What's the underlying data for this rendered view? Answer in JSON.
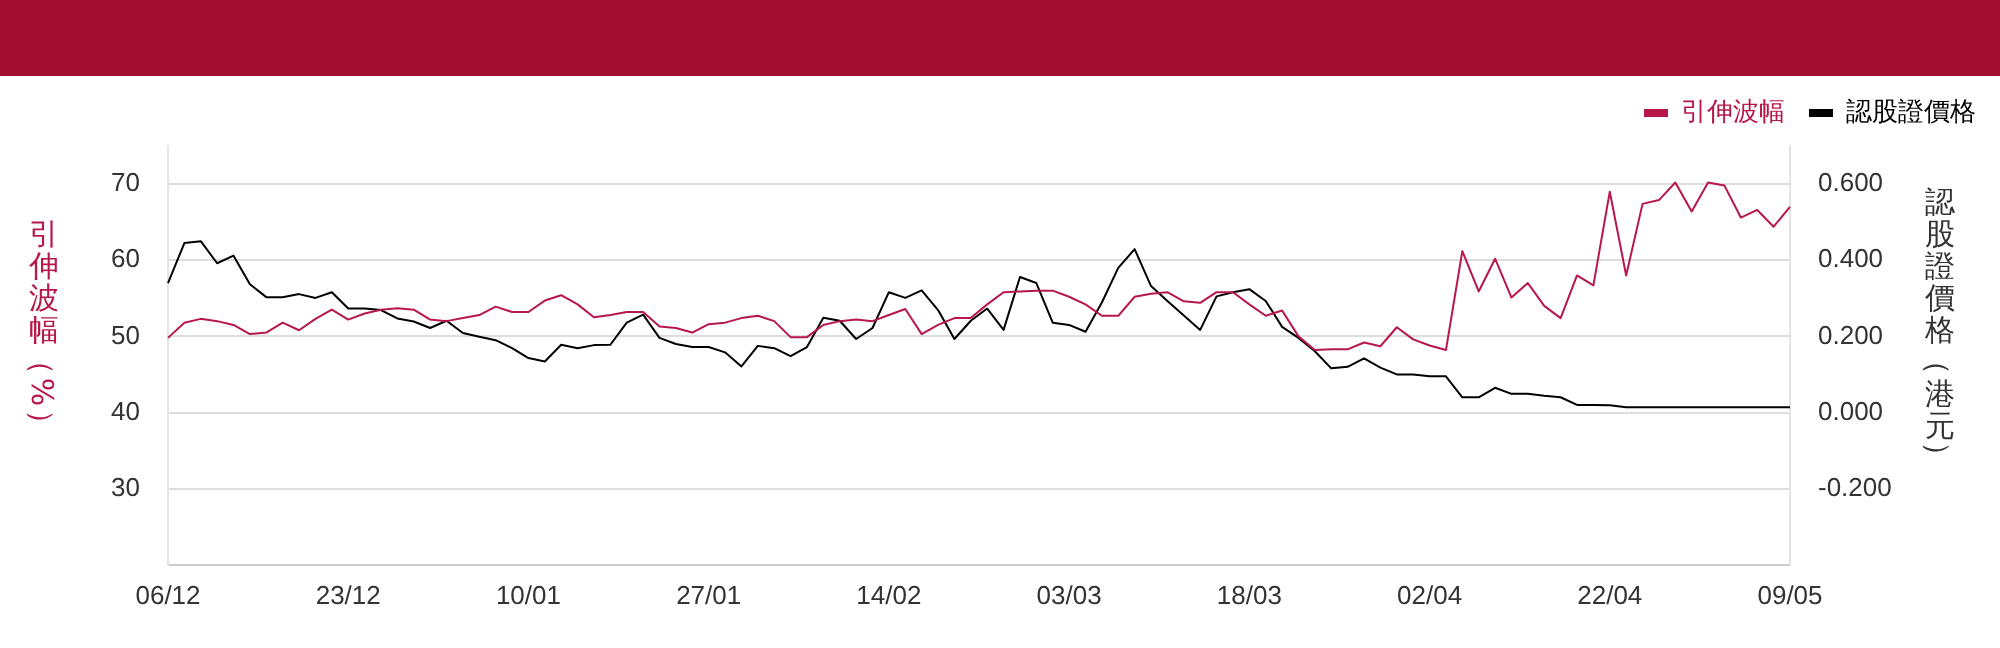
{
  "chart_data": {
    "type": "line",
    "ylabel": "引伸波幅（%）",
    "y2label": "認股證價格（港元）",
    "categories": [
      "06/12",
      null,
      null,
      null,
      null,
      null,
      null,
      null,
      null,
      null,
      null,
      "23/12",
      null,
      null,
      null,
      null,
      null,
      null,
      null,
      null,
      null,
      null,
      "10/01",
      null,
      null,
      null,
      null,
      null,
      null,
      null,
      null,
      null,
      null,
      "27/01",
      null,
      null,
      null,
      null,
      null,
      null,
      null,
      null,
      null,
      null,
      "14/02",
      null,
      null,
      null,
      null,
      null,
      null,
      null,
      null,
      null,
      null,
      "03/03",
      null,
      null,
      null,
      null,
      null,
      null,
      null,
      null,
      null,
      null,
      "18/03",
      null,
      null,
      null,
      null,
      null,
      null,
      null,
      null,
      null,
      null,
      "02/04",
      null,
      null,
      null,
      null,
      null,
      null,
      null,
      null,
      null,
      null,
      "22/04",
      null,
      null,
      null,
      null,
      null,
      null,
      null,
      null,
      null,
      null,
      "09/05"
    ],
    "series": [
      {
        "name": "引伸波幅",
        "color": "#b8174a",
        "values": [
          49.8,
          51.8,
          52.3,
          52.0,
          51.5,
          50.3,
          50.5,
          51.8,
          50.8,
          52.3,
          53.5,
          52.2,
          53.0,
          53.5,
          53.7,
          53.5,
          52.2,
          52.0,
          52.4,
          52.8,
          53.9,
          53.2,
          53.2,
          54.7,
          55.4,
          54.2,
          52.5,
          52.8,
          53.2,
          53.2,
          51.3,
          51.1,
          50.5,
          51.6,
          51.8,
          52.4,
          52.7,
          52.0,
          49.9,
          49.9,
          51.5,
          52.0,
          52.2,
          52.0,
          52.8,
          53.6,
          50.3,
          51.5,
          52.4,
          52.4,
          54.2,
          55.8,
          55.9,
          56.0,
          56.0,
          55.2,
          54.2,
          52.7,
          52.7,
          55.2,
          55.6,
          55.8,
          54.6,
          54.4,
          55.8,
          55.8,
          54.2,
          52.7,
          53.4,
          50.0,
          48.2,
          48.3,
          48.3,
          49.2,
          48.7,
          51.2,
          49.6,
          48.8,
          48.2,
          61.2,
          55.9,
          60.2,
          55.1,
          57.0,
          54.0,
          52.4,
          58.0,
          56.7,
          69.0,
          58.0,
          67.4,
          67.9,
          70.2,
          66.4,
          70.2,
          69.8,
          65.6,
          66.6,
          64.4,
          67.0
        ]
      },
      {
        "name": "認股證價格",
        "color": "#000000",
        "axis": "y2",
        "values": [
          0.34,
          0.445,
          0.45,
          0.392,
          0.412,
          0.337,
          0.303,
          0.303,
          0.311,
          0.301,
          0.316,
          0.273,
          0.273,
          0.269,
          0.247,
          0.239,
          0.222,
          0.241,
          0.209,
          0.199,
          0.19,
          0.169,
          0.143,
          0.134,
          0.178,
          0.169,
          0.177,
          0.178,
          0.236,
          0.257,
          0.196,
          0.18,
          0.172,
          0.172,
          0.158,
          0.121,
          0.175,
          0.169,
          0.148,
          0.172,
          0.249,
          0.241,
          0.193,
          0.222,
          0.316,
          0.301,
          0.321,
          0.269,
          0.193,
          0.241,
          0.273,
          0.217,
          0.356,
          0.34,
          0.236,
          0.23,
          0.212,
          0.289,
          0.38,
          0.429,
          0.332,
          0.293,
          0.255,
          0.217,
          0.305,
          0.316,
          0.324,
          0.293,
          0.225,
          0.196,
          0.161,
          0.116,
          0.12,
          0.142,
          0.118,
          0.1,
          0.1,
          0.095,
          0.095,
          0.04,
          0.04,
          0.065,
          0.049,
          0.049,
          0.044,
          0.04,
          0.02,
          0.02,
          0.019,
          0.014,
          0.014,
          0.014,
          0.014,
          0.014,
          0.014,
          0.014,
          0.014,
          0.014,
          0.014,
          0.014
        ]
      }
    ],
    "ylim": [
      20,
      75
    ],
    "yticks": [
      30,
      40,
      50,
      60,
      70
    ],
    "y2lim": [
      -0.4,
      0.7
    ],
    "y2ticks": [
      {
        "value": -0.2,
        "label": "-0.200"
      },
      {
        "value": 0,
        "label": "0.000"
      },
      {
        "value": 0.2,
        "label": "0.200"
      },
      {
        "value": 0.4,
        "label": "0.400"
      },
      {
        "value": 0.6,
        "label": "0.600"
      }
    ],
    "grid": "y",
    "legend": "top right",
    "marker": "none",
    "line_style": "solid"
  }
}
